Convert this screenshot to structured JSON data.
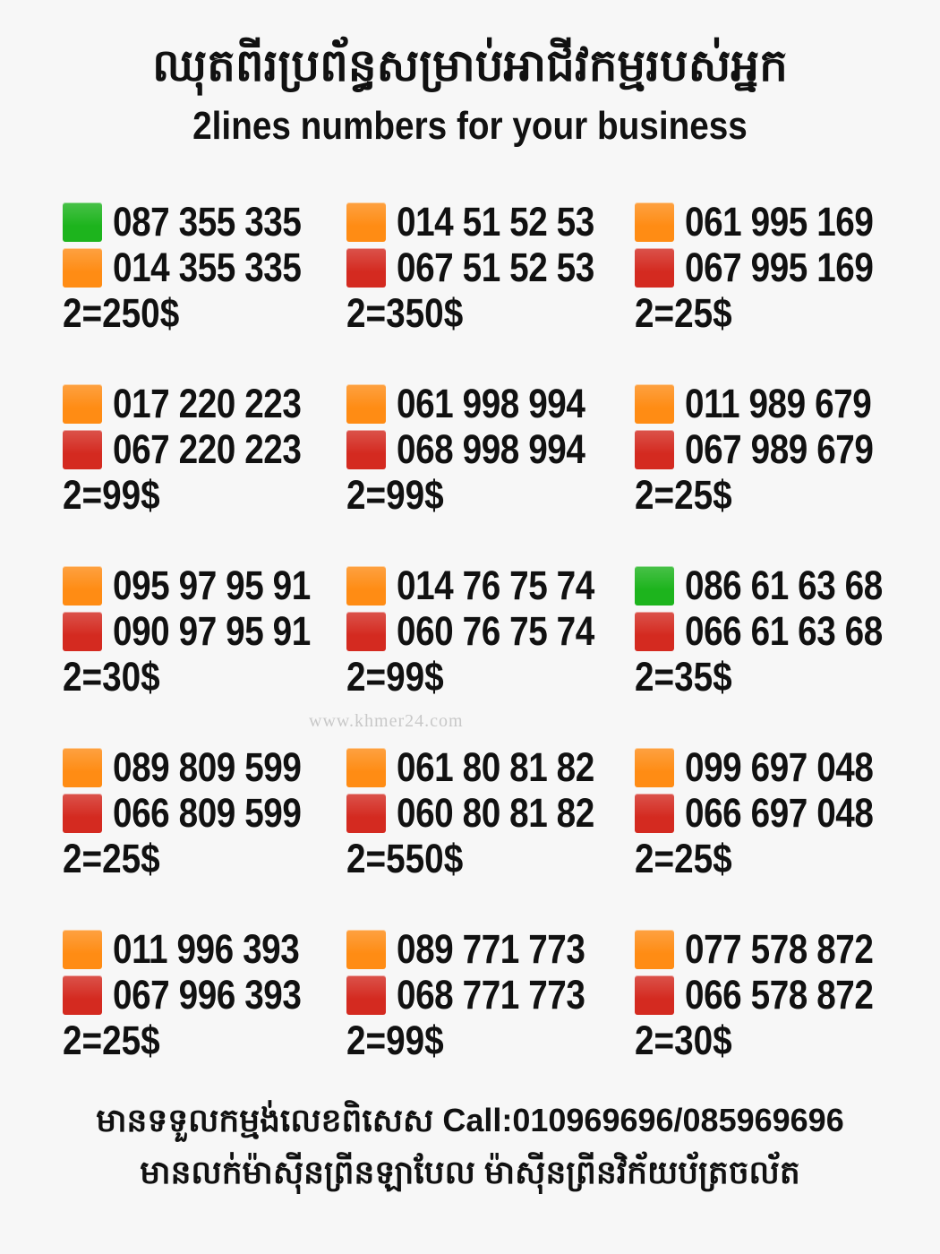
{
  "header": {
    "title_km": "ឈុតពីរប្រព័ន្ធសម្រាប់អាជីវកម្មរបស់អ្នក",
    "title_en": "2lines numbers for your business"
  },
  "colors": {
    "green": "#1db41d",
    "orange": "#ff8c14",
    "red": "#d42a20"
  },
  "packages": [
    {
      "lines": [
        {
          "number": "087 355 335",
          "color": "green"
        },
        {
          "number": "014 355 335",
          "color": "orange"
        }
      ],
      "price": "2=250$"
    },
    {
      "lines": [
        {
          "number": "014 51 52 53",
          "color": "orange"
        },
        {
          "number": "067 51 52 53",
          "color": "red"
        }
      ],
      "price": "2=350$"
    },
    {
      "lines": [
        {
          "number": "061 995 169",
          "color": "orange"
        },
        {
          "number": "067 995 169",
          "color": "red"
        }
      ],
      "price": "2=25$"
    },
    {
      "lines": [
        {
          "number": "017 220 223",
          "color": "orange"
        },
        {
          "number": "067 220 223",
          "color": "red"
        }
      ],
      "price": "2=99$"
    },
    {
      "lines": [
        {
          "number": "061 998 994",
          "color": "orange"
        },
        {
          "number": "068 998 994",
          "color": "red"
        }
      ],
      "price": "2=99$"
    },
    {
      "lines": [
        {
          "number": "011 989 679",
          "color": "orange"
        },
        {
          "number": "067 989 679",
          "color": "red"
        }
      ],
      "price": "2=25$"
    },
    {
      "lines": [
        {
          "number": "095 97 95 91",
          "color": "orange"
        },
        {
          "number": "090 97 95 91",
          "color": "red"
        }
      ],
      "price": "2=30$"
    },
    {
      "lines": [
        {
          "number": "014 76 75 74",
          "color": "orange"
        },
        {
          "number": "060 76 75 74",
          "color": "red"
        }
      ],
      "price": "2=99$"
    },
    {
      "lines": [
        {
          "number": "086 61 63 68",
          "color": "green"
        },
        {
          "number": "066 61 63 68",
          "color": "red"
        }
      ],
      "price": "2=35$"
    },
    {
      "lines": [
        {
          "number": "089 809 599",
          "color": "orange"
        },
        {
          "number": "066 809 599",
          "color": "red"
        }
      ],
      "price": "2=25$"
    },
    {
      "lines": [
        {
          "number": "061 80 81 82",
          "color": "orange"
        },
        {
          "number": "060 80 81 82",
          "color": "red"
        }
      ],
      "price": "2=550$"
    },
    {
      "lines": [
        {
          "number": "099 697 048",
          "color": "orange"
        },
        {
          "number": "066 697 048",
          "color": "red"
        }
      ],
      "price": "2=25$"
    },
    {
      "lines": [
        {
          "number": "011 996 393",
          "color": "orange"
        },
        {
          "number": "067 996 393",
          "color": "red"
        }
      ],
      "price": "2=25$"
    },
    {
      "lines": [
        {
          "number": "089 771 773",
          "color": "orange"
        },
        {
          "number": "068 771 773",
          "color": "red"
        }
      ],
      "price": "2=99$"
    },
    {
      "lines": [
        {
          "number": "077 578 872",
          "color": "orange"
        },
        {
          "number": "066 578 872",
          "color": "red"
        }
      ],
      "price": "2=30$"
    }
  ],
  "watermark": "www.khmer24.com",
  "footer": {
    "line1": "មានទទួលកម្មង់លេខពិសេស Call:010969696/085969696",
    "line2": "មានលក់ម៉ាស៊ីនព្រីនឡាបែល ម៉ាស៊ីនព្រីនវិក័យប័ត្រចល័ត"
  }
}
